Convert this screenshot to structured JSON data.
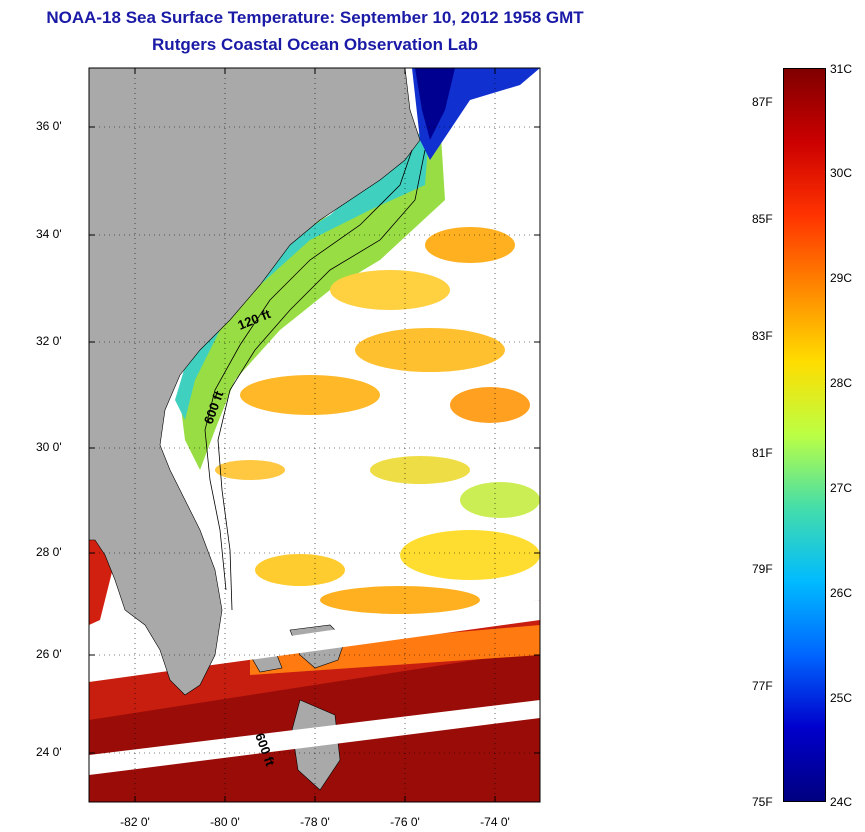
{
  "title": "NOAA-18 Sea Surface Temperature:  September 10, 2012 1958 GMT",
  "subtitle": "Rutgers Coastal Ocean Observation Lab",
  "map": {
    "lat_labels": [
      "36 0'",
      "34 0'",
      "32 0'",
      "30 0'",
      "28 0'",
      "26 0'",
      "24 0'"
    ],
    "lon_labels": [
      "-82 0'",
      "-80 0'",
      "-78 0'",
      "-76 0'",
      "-74 0'"
    ],
    "lat_range": [
      23,
      37
    ],
    "lon_range": [
      -83,
      -73
    ],
    "contour_labels": [
      "120 ft",
      "600 ft",
      "600 ft"
    ],
    "colors": {
      "land": "#a9a9a9",
      "ocean_missing": "#ffffff"
    }
  },
  "colorbar": {
    "celsius_labels": [
      "31C",
      "30C",
      "29C",
      "28C",
      "27C",
      "26C",
      "25C",
      "24C"
    ],
    "fahrenheit_labels": [
      "87F",
      "85F",
      "83F",
      "81F",
      "79F",
      "77F",
      "75F"
    ],
    "range_c": [
      24,
      31
    ],
    "colors": [
      "#800000",
      "#cc0000",
      "#ff3300",
      "#ff8800",
      "#ffdd00",
      "#bbff44",
      "#44ddaa",
      "#00bbff",
      "#0066ff",
      "#0000cc",
      "#000080"
    ]
  }
}
